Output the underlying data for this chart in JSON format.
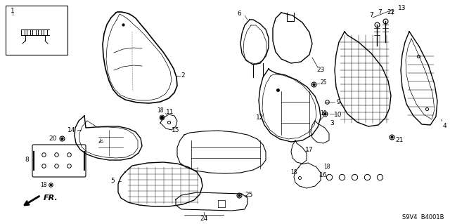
{
  "background_color": "#ffffff",
  "line_color": "#1a1a1a",
  "fig_width": 6.4,
  "fig_height": 3.19,
  "dpi": 100,
  "bottom_left_text": "FR.",
  "bottom_right_text": "S9V4  B4001B"
}
